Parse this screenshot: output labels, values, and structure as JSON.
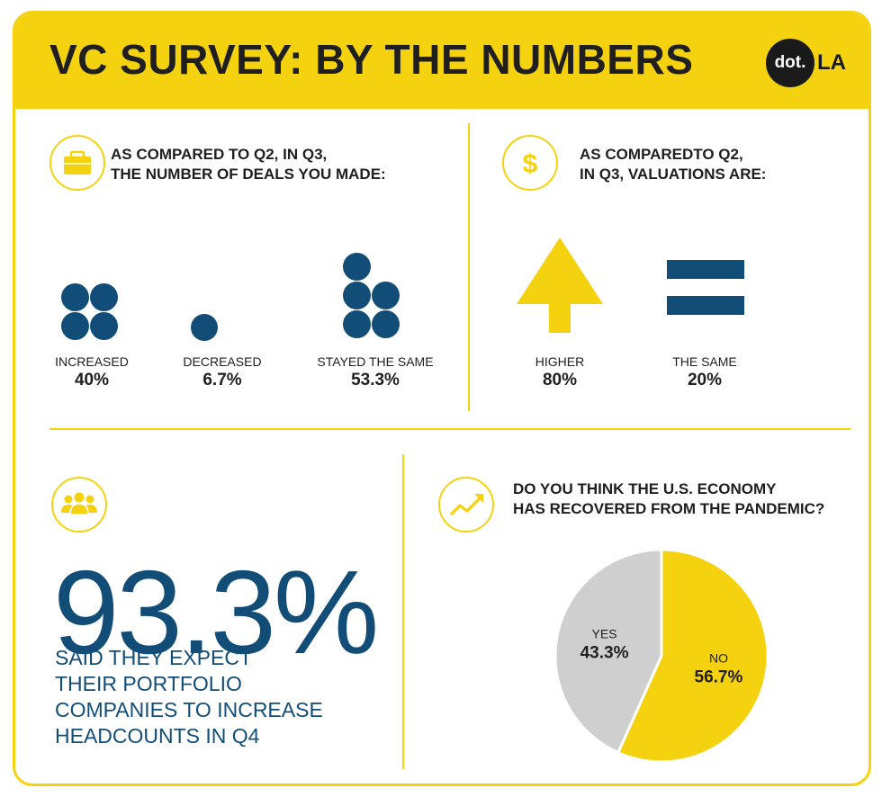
{
  "header": {
    "title": "VC SURVEY: BY THE NUMBERS"
  },
  "logo": {
    "dot": "dot.",
    "la": "LA"
  },
  "deals": {
    "question": "AS COMPARED TO Q2, IN Q3,\nTHE NUMBER OF DEALS YOU MADE:",
    "icon": "briefcase-icon",
    "items": [
      {
        "label": "INCREASED",
        "value": "40%"
      },
      {
        "label": "DECREASED",
        "value": "6.7%"
      },
      {
        "label": "STAYED THE SAME",
        "value": "53.3%"
      }
    ]
  },
  "valuations": {
    "question": "AS COMPAREDTO Q2,\nIN Q3, VALUATIONS ARE:",
    "icon": "dollar-icon",
    "items": [
      {
        "label": "HIGHER",
        "value": "80%",
        "icon": "arrow-up-icon"
      },
      {
        "label": "THE SAME",
        "value": "20%",
        "icon": "equals-icon"
      }
    ]
  },
  "headcount": {
    "icon": "people-icon",
    "big_value": "93.3%",
    "caption": "SAID THEY EXPECT\nTHEIR PORTFOLIO\nCOMPANIES TO INCREASE\nHEADCOUNTS IN Q4"
  },
  "economy": {
    "icon": "trend-up-icon",
    "question": "DO YOU THINK THE U.S. ECONOMY\nHAS RECOVERED FROM THE PANDEMIC?"
  },
  "colors": {
    "accent": "#f5d20f",
    "navy": "#124d78",
    "gray": "#cfcfcf"
  },
  "chart_data": {
    "type": "pie",
    "title": "DO YOU THINK THE U.S. ECONOMY\nHAS RECOVERED FROM THE PANDEMIC?",
    "slices": [
      {
        "label": "NO",
        "value": 56.7,
        "display": "56.7%",
        "color": "#f5d20f"
      },
      {
        "label": "YES",
        "value": 43.3,
        "display": "43.3%",
        "color": "#cfcfcf"
      }
    ]
  }
}
